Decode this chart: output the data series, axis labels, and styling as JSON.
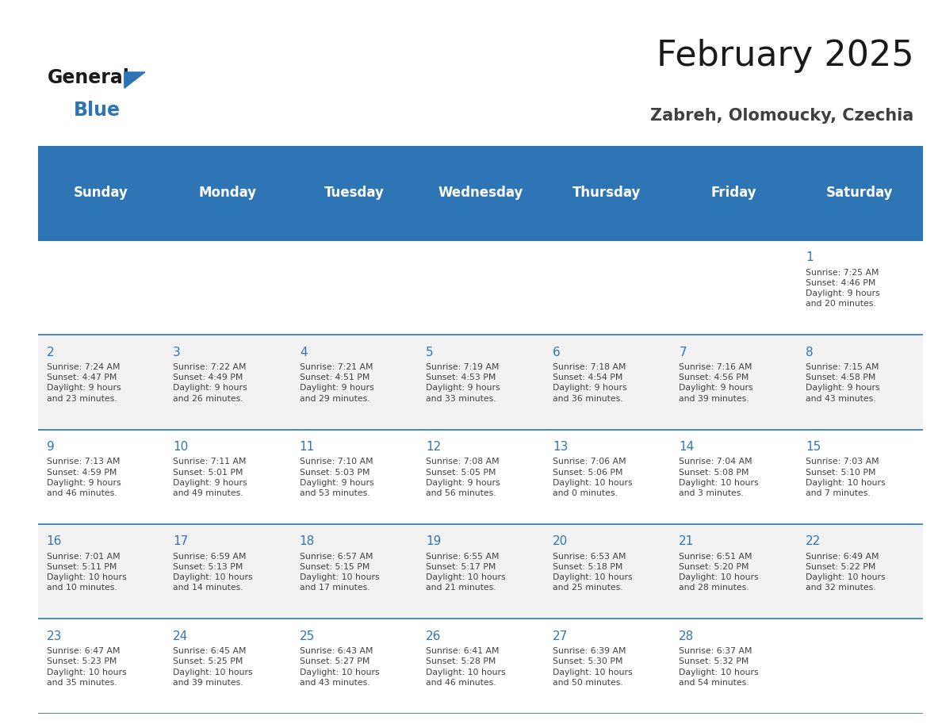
{
  "title": "February 2025",
  "subtitle": "Zabreh, Olomoucky, Czechia",
  "days_of_week": [
    "Sunday",
    "Monday",
    "Tuesday",
    "Wednesday",
    "Thursday",
    "Friday",
    "Saturday"
  ],
  "header_bg_color": "#2E75B6",
  "header_text_color": "#FFFFFF",
  "cell_bg_color": "#FFFFFF",
  "alt_cell_bg_color": "#F2F2F2",
  "day_num_color": "#2E75B6",
  "text_color": "#404040",
  "line_color": "#2E75B6",
  "calendar_data": [
    [
      null,
      null,
      null,
      null,
      null,
      null,
      {
        "day": 1,
        "sunrise": "7:25 AM",
        "sunset": "4:46 PM",
        "daylight": "9 hours\nand 20 minutes."
      }
    ],
    [
      {
        "day": 2,
        "sunrise": "7:24 AM",
        "sunset": "4:47 PM",
        "daylight": "9 hours\nand 23 minutes."
      },
      {
        "day": 3,
        "sunrise": "7:22 AM",
        "sunset": "4:49 PM",
        "daylight": "9 hours\nand 26 minutes."
      },
      {
        "day": 4,
        "sunrise": "7:21 AM",
        "sunset": "4:51 PM",
        "daylight": "9 hours\nand 29 minutes."
      },
      {
        "day": 5,
        "sunrise": "7:19 AM",
        "sunset": "4:53 PM",
        "daylight": "9 hours\nand 33 minutes."
      },
      {
        "day": 6,
        "sunrise": "7:18 AM",
        "sunset": "4:54 PM",
        "daylight": "9 hours\nand 36 minutes."
      },
      {
        "day": 7,
        "sunrise": "7:16 AM",
        "sunset": "4:56 PM",
        "daylight": "9 hours\nand 39 minutes."
      },
      {
        "day": 8,
        "sunrise": "7:15 AM",
        "sunset": "4:58 PM",
        "daylight": "9 hours\nand 43 minutes."
      }
    ],
    [
      {
        "day": 9,
        "sunrise": "7:13 AM",
        "sunset": "4:59 PM",
        "daylight": "9 hours\nand 46 minutes."
      },
      {
        "day": 10,
        "sunrise": "7:11 AM",
        "sunset": "5:01 PM",
        "daylight": "9 hours\nand 49 minutes."
      },
      {
        "day": 11,
        "sunrise": "7:10 AM",
        "sunset": "5:03 PM",
        "daylight": "9 hours\nand 53 minutes."
      },
      {
        "day": 12,
        "sunrise": "7:08 AM",
        "sunset": "5:05 PM",
        "daylight": "9 hours\nand 56 minutes."
      },
      {
        "day": 13,
        "sunrise": "7:06 AM",
        "sunset": "5:06 PM",
        "daylight": "10 hours\nand 0 minutes."
      },
      {
        "day": 14,
        "sunrise": "7:04 AM",
        "sunset": "5:08 PM",
        "daylight": "10 hours\nand 3 minutes."
      },
      {
        "day": 15,
        "sunrise": "7:03 AM",
        "sunset": "5:10 PM",
        "daylight": "10 hours\nand 7 minutes."
      }
    ],
    [
      {
        "day": 16,
        "sunrise": "7:01 AM",
        "sunset": "5:11 PM",
        "daylight": "10 hours\nand 10 minutes."
      },
      {
        "day": 17,
        "sunrise": "6:59 AM",
        "sunset": "5:13 PM",
        "daylight": "10 hours\nand 14 minutes."
      },
      {
        "day": 18,
        "sunrise": "6:57 AM",
        "sunset": "5:15 PM",
        "daylight": "10 hours\nand 17 minutes."
      },
      {
        "day": 19,
        "sunrise": "6:55 AM",
        "sunset": "5:17 PM",
        "daylight": "10 hours\nand 21 minutes."
      },
      {
        "day": 20,
        "sunrise": "6:53 AM",
        "sunset": "5:18 PM",
        "daylight": "10 hours\nand 25 minutes."
      },
      {
        "day": 21,
        "sunrise": "6:51 AM",
        "sunset": "5:20 PM",
        "daylight": "10 hours\nand 28 minutes."
      },
      {
        "day": 22,
        "sunrise": "6:49 AM",
        "sunset": "5:22 PM",
        "daylight": "10 hours\nand 32 minutes."
      }
    ],
    [
      {
        "day": 23,
        "sunrise": "6:47 AM",
        "sunset": "5:23 PM",
        "daylight": "10 hours\nand 35 minutes."
      },
      {
        "day": 24,
        "sunrise": "6:45 AM",
        "sunset": "5:25 PM",
        "daylight": "10 hours\nand 39 minutes."
      },
      {
        "day": 25,
        "sunrise": "6:43 AM",
        "sunset": "5:27 PM",
        "daylight": "10 hours\nand 43 minutes."
      },
      {
        "day": 26,
        "sunrise": "6:41 AM",
        "sunset": "5:28 PM",
        "daylight": "10 hours\nand 46 minutes."
      },
      {
        "day": 27,
        "sunrise": "6:39 AM",
        "sunset": "5:30 PM",
        "daylight": "10 hours\nand 50 minutes."
      },
      {
        "day": 28,
        "sunrise": "6:37 AM",
        "sunset": "5:32 PM",
        "daylight": "10 hours\nand 54 minutes."
      },
      null
    ]
  ],
  "logo_general_color": "#1A1A1A",
  "logo_blue_color": "#2E75B6",
  "logo_triangle_color": "#2E75B6"
}
